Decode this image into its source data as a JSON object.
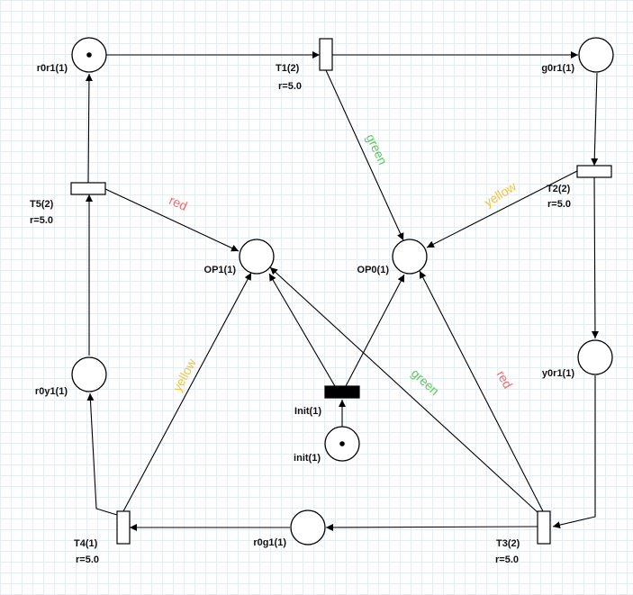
{
  "colors": {
    "green": "#5dc95d",
    "yellow": "#f0c33c",
    "red": "#f06a6a"
  },
  "places": {
    "r0r1": {
      "label": "r0r1(1)",
      "tokens": 1
    },
    "g0r1": {
      "label": "g0r1(1)",
      "tokens": 0
    },
    "op1": {
      "label": "OP1(1)",
      "tokens": 0
    },
    "op0": {
      "label": "OP0(1)",
      "tokens": 0
    },
    "r0y1": {
      "label": "r0y1(1)",
      "tokens": 0
    },
    "y0r1": {
      "label": "y0r1(1)",
      "tokens": 0
    },
    "init": {
      "label": "init(1)",
      "tokens": 1
    },
    "r0g1": {
      "label": "r0g1(1)",
      "tokens": 0
    }
  },
  "transitions": {
    "t1": {
      "label": "T1(2)",
      "rate": "r=5.0"
    },
    "t2": {
      "label": "T2(2)",
      "rate": "r=5.0"
    },
    "t3": {
      "label": "T3(2)",
      "rate": "r=5.0"
    },
    "t4": {
      "label": "T4(1)",
      "rate": "r=5.0"
    },
    "t5": {
      "label": "T5(2)",
      "rate": "r=5.0"
    },
    "init": {
      "label": "Init(1)"
    }
  },
  "arc_labels": {
    "t1_op0": "green",
    "t2_op0": "yellow",
    "t5_op1": "red",
    "t4_op1": "yellow",
    "t3_op1": "green",
    "t3_op0": "red"
  }
}
